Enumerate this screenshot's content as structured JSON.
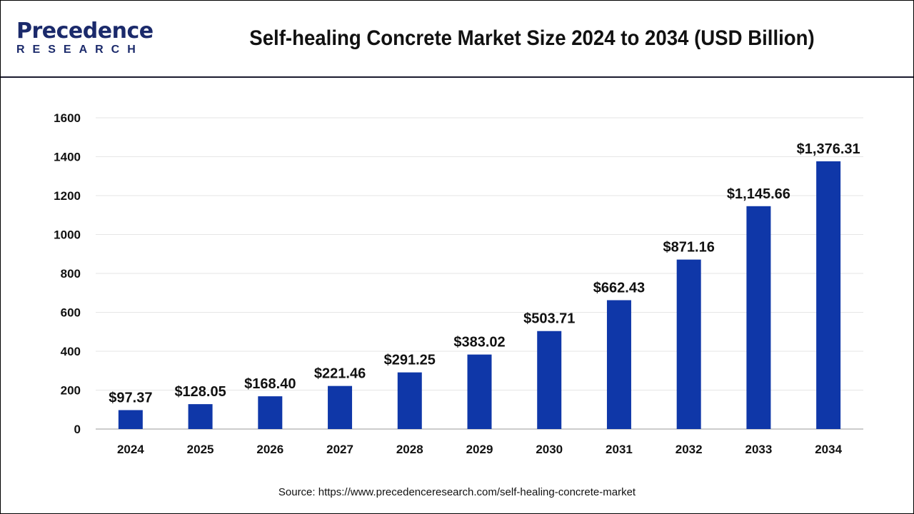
{
  "header": {
    "logo_top": "Precedence",
    "logo_bottom": "RESEARCH",
    "title": "Self-healing Concrete Market Size 2024 to 2034 (USD Billion)"
  },
  "source": "Source: https://www.precedenceresearch.com/self-healing-concrete-market",
  "chart_data": {
    "type": "bar",
    "title": "Self-healing Concrete Market Size 2024 to 2034 (USD Billion)",
    "categories": [
      "2024",
      "2025",
      "2026",
      "2027",
      "2028",
      "2029",
      "2030",
      "2031",
      "2032",
      "2033",
      "2034"
    ],
    "values": [
      97.37,
      128.05,
      168.4,
      221.46,
      291.25,
      383.02,
      503.71,
      662.43,
      871.16,
      1145.66,
      1376.31
    ],
    "labels": [
      "$97.37",
      "$128.05",
      "$168.40",
      "$221.46",
      "$291.25",
      "$383.02",
      "$503.71",
      "$662.43",
      "$871.16",
      "$1,145.66",
      "$1,376.31"
    ],
    "yticks": [
      "0",
      "200",
      "400",
      "600",
      "800",
      "1000",
      "1200",
      "1400",
      "1600"
    ],
    "ylim": [
      0,
      1600
    ],
    "grid": true,
    "bar_color": "#0f37a8",
    "xlabel": "",
    "ylabel": ""
  }
}
